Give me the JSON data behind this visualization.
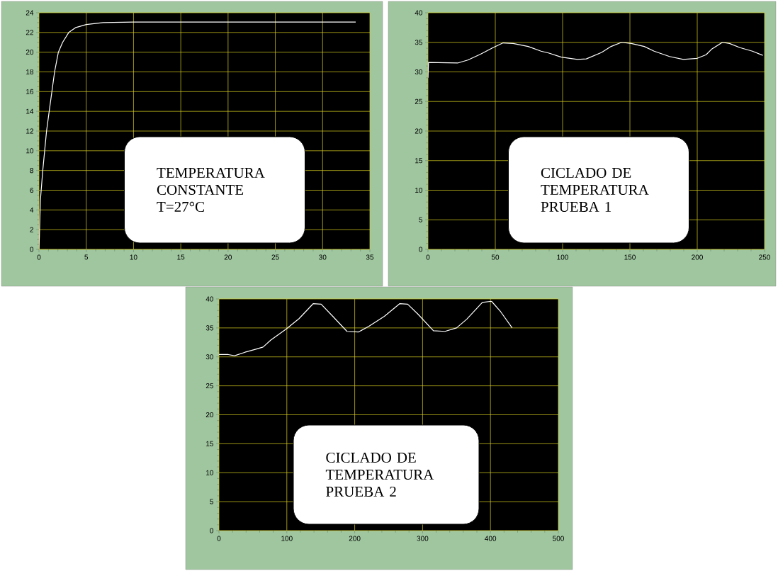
{
  "chart_data": [
    {
      "type": "line",
      "xlim": [
        0,
        35
      ],
      "ylim": [
        0,
        24
      ],
      "xticks": [
        0,
        5,
        10,
        15,
        20,
        25,
        30,
        35
      ],
      "yticks": [
        0,
        2,
        4,
        6,
        8,
        10,
        12,
        14,
        16,
        18,
        20,
        22,
        24
      ],
      "grid": true,
      "x": [
        0,
        0.05,
        0.15,
        0.4,
        0.6,
        0.8,
        1.08,
        1.65,
        2.05,
        2.5,
        3.15,
        3.9,
        5.0,
        6.8,
        10,
        15,
        20,
        25,
        30,
        33.5
      ],
      "series": [
        {
          "color": "#ffffff",
          "values": [
            0,
            1.5,
            5,
            8,
            10,
            12,
            14,
            18,
            20,
            21,
            22,
            22.5,
            22.8,
            23,
            23.05,
            23.05,
            23.05,
            23.05,
            23.05,
            23.05
          ]
        }
      ],
      "annotations": [
        "TEMPERATURA CONSTANTE T=27°C"
      ]
    },
    {
      "type": "line",
      "xlim": [
        0,
        250
      ],
      "ylim": [
        0,
        40
      ],
      "xticks": [
        0,
        50,
        100,
        150,
        200,
        250
      ],
      "yticks": [
        0,
        5,
        10,
        15,
        20,
        25,
        30,
        35,
        40
      ],
      "grid": true,
      "x": [
        0,
        0.4,
        22,
        29.6,
        39,
        48.3,
        55.8,
        63.3,
        74.5,
        84,
        89.5,
        99,
        111,
        117.6,
        129,
        136,
        143.8,
        151,
        160.7,
        168,
        179.4,
        189.7,
        200,
        206.6,
        211,
        218.7,
        224,
        231.8,
        241,
        248.7
      ],
      "series": [
        {
          "color": "#ffffff",
          "values": [
            29,
            31.6,
            31.5,
            32,
            33,
            34.1,
            34.9,
            34.8,
            34.3,
            33.5,
            33.2,
            32.5,
            32.1,
            32.2,
            33.3,
            34.3,
            35,
            34.8,
            34.3,
            33.5,
            32.6,
            32.1,
            32.3,
            32.9,
            33.9,
            35,
            34.8,
            34.1,
            33.5,
            32.8
          ]
        }
      ],
      "annotations": [
        "CICLADO DE TEMPERATURA PRUEBA 1"
      ]
    },
    {
      "type": "line",
      "xlim": [
        0,
        500
      ],
      "ylim": [
        0,
        40
      ],
      "xticks": [
        0,
        100,
        200,
        300,
        400,
        500
      ],
      "yticks": [
        0,
        5,
        10,
        15,
        20,
        25,
        30,
        35,
        40
      ],
      "grid": true,
      "x": [
        0,
        13.7,
        23,
        38.4,
        53.6,
        65,
        76.4,
        99,
        118,
        139,
        150.6,
        167.7,
        188.6,
        205.7,
        221,
        243.7,
        266.5,
        278,
        293,
        316,
        333,
        350,
        365,
        388,
        401.5,
        415,
        432
      ],
      "series": [
        {
          "color": "#ffffff",
          "values": [
            30.4,
            30.4,
            30.2,
            30.8,
            31.3,
            31.7,
            32.9,
            34.8,
            36.6,
            39.2,
            39.1,
            37,
            34.4,
            34.3,
            35.3,
            37,
            39.2,
            39.1,
            37.4,
            34.5,
            34.4,
            35,
            36.5,
            39.4,
            39.6,
            37.8,
            35
          ]
        }
      ],
      "annotations": [
        "CICLADO DE TEMPERATURA PRUEBA 2"
      ]
    }
  ]
}
